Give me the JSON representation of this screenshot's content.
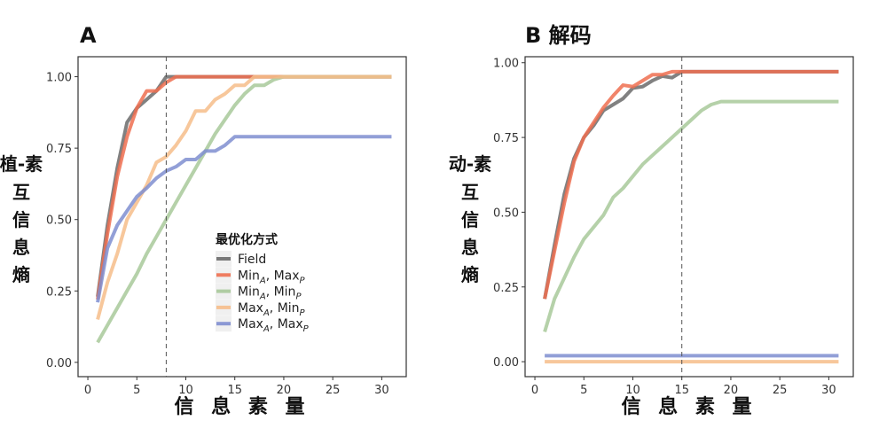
{
  "chart_data": [
    {
      "type": "line",
      "title": "A",
      "ylabel": "植-素互信息熵",
      "xlabel": "信 息 素 量",
      "xlim": [
        -1,
        32.5
      ],
      "ylim": [
        -0.05,
        1.07
      ],
      "xticks": [
        0,
        5,
        10,
        15,
        20,
        25,
        30
      ],
      "yticks": [
        "0.00",
        "0.25",
        "0.50",
        "0.75",
        "1.00"
      ],
      "vline": 8,
      "grid": false,
      "legend": {
        "title": "最优化方式",
        "placement": "center-right-inside"
      },
      "x": [
        1,
        2,
        3,
        4,
        5,
        6,
        7,
        8,
        9,
        10,
        11,
        12,
        13,
        14,
        15,
        16,
        17,
        18,
        19,
        20,
        21,
        22,
        23,
        24,
        25,
        26,
        27,
        28,
        29,
        30,
        31
      ],
      "series": [
        {
          "name": "Field",
          "color": "#6b6b6b",
          "values": [
            0.23,
            0.48,
            0.68,
            0.84,
            0.89,
            0.92,
            0.95,
            1.0,
            1,
            1,
            1,
            1,
            1,
            1,
            1,
            1,
            1,
            1,
            1,
            1,
            1,
            1,
            1,
            1,
            1,
            1,
            1,
            1,
            1,
            1,
            1
          ]
        },
        {
          "name": "MinA, MaxP",
          "color": "#ee6f50",
          "values": [
            0.22,
            0.45,
            0.65,
            0.79,
            0.89,
            0.95,
            0.95,
            0.98,
            1.0,
            1,
            1,
            1,
            1,
            1,
            1,
            1,
            1,
            1,
            1,
            1,
            1,
            1,
            1,
            1,
            1,
            1,
            1,
            1,
            1,
            1,
            1
          ]
        },
        {
          "name": "MinA, MinP",
          "color": "#a8c99a",
          "values": [
            0.07,
            0.13,
            0.19,
            0.25,
            0.31,
            0.38,
            0.44,
            0.5,
            0.56,
            0.62,
            0.68,
            0.74,
            0.8,
            0.85,
            0.9,
            0.94,
            0.97,
            0.97,
            0.99,
            1.0,
            1,
            1,
            1,
            1,
            1,
            1,
            1,
            1,
            1,
            1,
            1
          ]
        },
        {
          "name": "MaxA, MinP",
          "color": "#f6bd8a",
          "values": [
            0.15,
            0.28,
            0.38,
            0.5,
            0.56,
            0.62,
            0.7,
            0.72,
            0.76,
            0.81,
            0.88,
            0.88,
            0.92,
            0.94,
            0.97,
            0.97,
            1.0,
            1,
            1,
            1,
            1,
            1,
            1,
            1,
            1,
            1,
            1,
            1,
            1,
            1,
            1
          ]
        },
        {
          "name": "MaxA, MaxP",
          "color": "#7f8ed0",
          "values": [
            0.21,
            0.4,
            0.48,
            0.53,
            0.58,
            0.61,
            0.645,
            0.67,
            0.685,
            0.71,
            0.71,
            0.74,
            0.74,
            0.76,
            0.79,
            0.79,
            0.79,
            0.79,
            0.79,
            0.79,
            0.79,
            0.79,
            0.79,
            0.79,
            0.79,
            0.79,
            0.79,
            0.79,
            0.79,
            0.79,
            0.79
          ]
        }
      ]
    },
    {
      "type": "line",
      "title": "B 解码",
      "ylabel": "动-素互信息熵",
      "xlabel": "信 息 素 量",
      "xlim": [
        -1,
        32.5
      ],
      "ylim": [
        -0.05,
        1.02
      ],
      "xticks": [
        0,
        5,
        10,
        15,
        20,
        25,
        30
      ],
      "yticks": [
        "0.00",
        "0.25",
        "0.50",
        "0.75",
        "1.00"
      ],
      "vline": 15,
      "grid": false,
      "x": [
        1,
        2,
        3,
        4,
        5,
        6,
        7,
        8,
        9,
        10,
        11,
        12,
        13,
        14,
        15,
        16,
        17,
        18,
        19,
        20,
        21,
        22,
        23,
        24,
        25,
        26,
        27,
        28,
        29,
        30,
        31
      ],
      "series": [
        {
          "name": "Field",
          "color": "#6b6b6b",
          "values": [
            0.21,
            0.39,
            0.56,
            0.68,
            0.75,
            0.79,
            0.84,
            0.86,
            0.88,
            0.915,
            0.92,
            0.94,
            0.955,
            0.95,
            0.97,
            0.97,
            0.97,
            0.97,
            0.97,
            0.97,
            0.97,
            0.97,
            0.97,
            0.97,
            0.97,
            0.97,
            0.97,
            0.97,
            0.97,
            0.97,
            0.97
          ]
        },
        {
          "name": "MinA, MaxP",
          "color": "#ee6f50",
          "values": [
            0.21,
            0.37,
            0.53,
            0.67,
            0.75,
            0.8,
            0.85,
            0.89,
            0.925,
            0.92,
            0.94,
            0.96,
            0.96,
            0.97,
            0.97,
            0.97,
            0.97,
            0.97,
            0.97,
            0.97,
            0.97,
            0.97,
            0.97,
            0.97,
            0.97,
            0.97,
            0.97,
            0.97,
            0.97,
            0.97,
            0.97
          ]
        },
        {
          "name": "MinA, MinP",
          "color": "#a8c99a",
          "values": [
            0.1,
            0.21,
            0.28,
            0.35,
            0.41,
            0.45,
            0.49,
            0.55,
            0.58,
            0.62,
            0.66,
            0.69,
            0.72,
            0.75,
            0.78,
            0.81,
            0.84,
            0.86,
            0.87,
            0.87,
            0.87,
            0.87,
            0.87,
            0.87,
            0.87,
            0.87,
            0.87,
            0.87,
            0.87,
            0.87,
            0.87
          ]
        },
        {
          "name": "MaxA, MinP",
          "color": "#f6bd8a",
          "values": [
            0,
            0,
            0,
            0,
            0,
            0,
            0,
            0,
            0,
            0,
            0,
            0,
            0,
            0,
            0,
            0,
            0,
            0,
            0,
            0,
            0,
            0,
            0,
            0,
            0,
            0,
            0,
            0,
            0,
            0,
            0
          ]
        },
        {
          "name": "MaxA, MaxP",
          "color": "#7f8ed0",
          "values": [
            0.02,
            0.02,
            0.02,
            0.02,
            0.02,
            0.02,
            0.02,
            0.02,
            0.02,
            0.02,
            0.02,
            0.02,
            0.02,
            0.02,
            0.02,
            0.02,
            0.02,
            0.02,
            0.02,
            0.02,
            0.02,
            0.02,
            0.02,
            0.02,
            0.02,
            0.02,
            0.02,
            0.02,
            0.02,
            0.02,
            0.02
          ]
        }
      ]
    }
  ]
}
